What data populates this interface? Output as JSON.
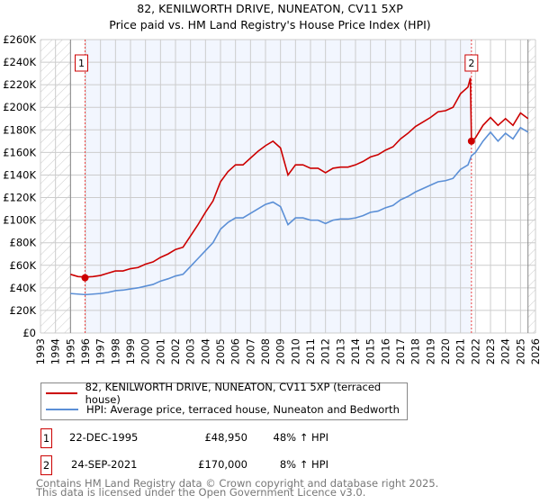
{
  "chart_data": {
    "type": "line",
    "title": "82, KENILWORTH DRIVE, NUNEATON, CV11 5XP",
    "subtitle": "Price paid vs. HM Land Registry's House Price Index (HPI)",
    "xlim": [
      1993,
      2026
    ],
    "ylim": [
      0,
      260000
    ],
    "x_ticks": [
      "1993",
      "1994",
      "1995",
      "1996",
      "1997",
      "1998",
      "1999",
      "2000",
      "2001",
      "2002",
      "2003",
      "2004",
      "2005",
      "2006",
      "2007",
      "2008",
      "2009",
      "2010",
      "2011",
      "2012",
      "2013",
      "2014",
      "2015",
      "2016",
      "2017",
      "2018",
      "2019",
      "2020",
      "2021",
      "2022",
      "2023",
      "2024",
      "2025",
      "2026"
    ],
    "y_ticks": [
      "£0",
      "£20K",
      "£40K",
      "£60K",
      "£80K",
      "£100K",
      "£120K",
      "£140K",
      "£160K",
      "£180K",
      "£200K",
      "£220K",
      "£240K",
      "£260K"
    ],
    "grid": true,
    "hatched_ranges": [
      [
        1993,
        1995
      ],
      [
        2025.5,
        2026
      ]
    ],
    "series": [
      {
        "name": "82, KENILWORTH DRIVE, NUNEATON, CV11 5XP (terraced house)",
        "color": "#cc0000",
        "x": [
          1995,
          1995.5,
          1996,
          1996.5,
          1997,
          1997.5,
          1998,
          1998.5,
          1999,
          1999.5,
          2000,
          2000.5,
          2001,
          2001.5,
          2002,
          2002.5,
          2003,
          2003.5,
          2004,
          2004.5,
          2005,
          2005.5,
          2006,
          2006.5,
          2007,
          2007.5,
          2008,
          2008.5,
          2009,
          2009.5,
          2010,
          2010.5,
          2011,
          2011.5,
          2012,
          2012.5,
          2013,
          2013.5,
          2014,
          2014.5,
          2015,
          2015.5,
          2016,
          2016.5,
          2017,
          2017.5,
          2018,
          2018.5,
          2019,
          2019.5,
          2020,
          2020.5,
          2021,
          2021.5,
          2021.66,
          2021.73,
          2022,
          2022.5,
          2023,
          2023.5,
          2024,
          2024.5,
          2025,
          2025.5
        ],
        "y": [
          52000,
          50000,
          49600,
          50000,
          51000,
          53000,
          55000,
          55000,
          57000,
          58000,
          61000,
          63000,
          67000,
          70000,
          74000,
          76000,
          86000,
          96000,
          107000,
          117000,
          134000,
          143000,
          149000,
          149000,
          155000,
          161000,
          166000,
          170000,
          164000,
          140000,
          149000,
          149000,
          146000,
          146000,
          142000,
          146000,
          147000,
          147000,
          149000,
          152000,
          156000,
          158000,
          162000,
          165000,
          172000,
          177000,
          183000,
          187000,
          191000,
          196000,
          197000,
          200000,
          212000,
          218000,
          226000,
          170000,
          173000,
          184000,
          191000,
          184000,
          190000,
          184000,
          195000,
          190000
        ]
      },
      {
        "name": "HPI: Average price, terraced house, Nuneaton and Bedworth",
        "color": "#5b8fd6",
        "x": [
          1995,
          1995.5,
          1996,
          1996.5,
          1997,
          1997.5,
          1998,
          1998.5,
          1999,
          1999.5,
          2000,
          2000.5,
          2001,
          2001.5,
          2002,
          2002.5,
          2003,
          2003.5,
          2004,
          2004.5,
          2005,
          2005.5,
          2006,
          2006.5,
          2007,
          2007.5,
          2008,
          2008.5,
          2009,
          2009.5,
          2010,
          2010.5,
          2011,
          2011.5,
          2012,
          2012.5,
          2013,
          2013.5,
          2014,
          2014.5,
          2015,
          2015.5,
          2016,
          2016.5,
          2017,
          2017.5,
          2018,
          2018.5,
          2019,
          2019.5,
          2020,
          2020.5,
          2021,
          2021.5,
          2021.73,
          2022,
          2022.5,
          2023,
          2023.5,
          2024,
          2024.5,
          2025,
          2025.5
        ],
        "y": [
          35000,
          34500,
          34000,
          34500,
          35000,
          36000,
          37500,
          38000,
          39000,
          40000,
          41500,
          43000,
          46000,
          48000,
          50500,
          52000,
          59000,
          66000,
          73000,
          80000,
          92000,
          98000,
          102000,
          102000,
          106000,
          110000,
          114000,
          116000,
          112000,
          96000,
          102000,
          102000,
          100000,
          100000,
          97000,
          100000,
          101000,
          101000,
          102000,
          104000,
          107000,
          108000,
          111000,
          113000,
          118000,
          121000,
          125000,
          128000,
          131000,
          134000,
          135000,
          137000,
          145000,
          149000,
          157000,
          160000,
          170000,
          178000,
          170000,
          177000,
          172000,
          182000,
          178000
        ]
      }
    ],
    "sales": [
      {
        "label": "1",
        "x": 1995.97,
        "y": 48950
      },
      {
        "label": "2",
        "x": 2021.73,
        "y": 170000
      }
    ]
  },
  "legend": {
    "items": [
      "82, KENILWORTH DRIVE, NUNEATON, CV11 5XP (terraced house)",
      "HPI: Average price, terraced house, Nuneaton and Bedworth"
    ]
  },
  "transactions": [
    {
      "num": "1",
      "date": "22-DEC-1995",
      "price": "£48,950",
      "hpi": "48% ↑ HPI"
    },
    {
      "num": "2",
      "date": "24-SEP-2021",
      "price": "£170,000",
      "hpi": "8% ↑ HPI"
    }
  ],
  "footer": [
    "Contains HM Land Registry data © Crown copyright and database right 2025.",
    "This data is licensed under the Open Government Licence v3.0."
  ]
}
